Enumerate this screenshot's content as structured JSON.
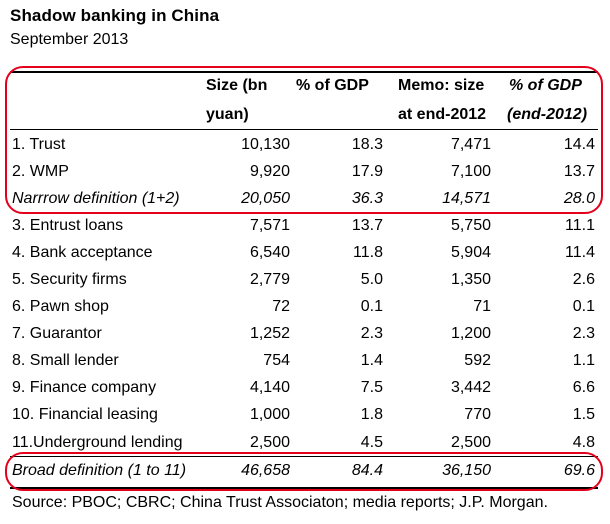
{
  "title": "Shadow banking in China",
  "subtitle": "September 2013",
  "headers": {
    "size_line1": "Size (bn",
    "size_line2": "yuan)",
    "gdp": "% of GDP",
    "memo_line1": "Memo: size",
    "memo_line2": "at end-2012",
    "gdp2012_line1": "% of GDP",
    "gdp2012_line2": "(end-2012)"
  },
  "rows": [
    {
      "label": "1. Trust",
      "size": "10,130",
      "gdp": "18.3",
      "memo": "7,471",
      "gdp2012": "14.4"
    },
    {
      "label": "2. WMP",
      "size": "9,920",
      "gdp": "17.9",
      "memo": "7,100",
      "gdp2012": "13.7"
    },
    {
      "label": "Narrrow definition (1+2)",
      "size": "20,050",
      "gdp": "36.3",
      "memo": "14,571",
      "gdp2012": "28.0"
    },
    {
      "label": "3. Entrust loans",
      "size": "7,571",
      "gdp": "13.7",
      "memo": "5,750",
      "gdp2012": "11.1"
    },
    {
      "label": "4. Bank acceptance",
      "size": "6,540",
      "gdp": "11.8",
      "memo": "5,904",
      "gdp2012": "11.4"
    },
    {
      "label": "5. Security firms",
      "size": "2,779",
      "gdp": "5.0",
      "memo": "1,350",
      "gdp2012": "2.6"
    },
    {
      "label": "6. Pawn shop",
      "size": "72",
      "gdp": "0.1",
      "memo": "71",
      "gdp2012": "0.1"
    },
    {
      "label": "7. Guarantor",
      "size": "1,252",
      "gdp": "2.3",
      "memo": "1,200",
      "gdp2012": "2.3"
    },
    {
      "label": "8. Small lender",
      "size": "754",
      "gdp": "1.4",
      "memo": "592",
      "gdp2012": "1.1"
    },
    {
      "label": "9. Finance company",
      "size": "4,140",
      "gdp": "7.5",
      "memo": "3,442",
      "gdp2012": "6.6"
    },
    {
      "label": "10. Financial leasing",
      "size": "1,000",
      "gdp": "1.8",
      "memo": "770",
      "gdp2012": "1.5"
    },
    {
      "label": "11.Underground lending",
      "size": "2,500",
      "gdp": "4.5",
      "memo": "2,500",
      "gdp2012": "4.8"
    },
    {
      "label": "Broad definition (1 to 11)",
      "size": "46,658",
      "gdp": "84.4",
      "memo": "36,150",
      "gdp2012": "69.6"
    }
  ],
  "source": "Source: PBOC; CBRC; China Trust Associaton; media reports; J.P. Morgan.",
  "colors": {
    "highlight_oval": "#e4001b",
    "text": "#000000"
  }
}
